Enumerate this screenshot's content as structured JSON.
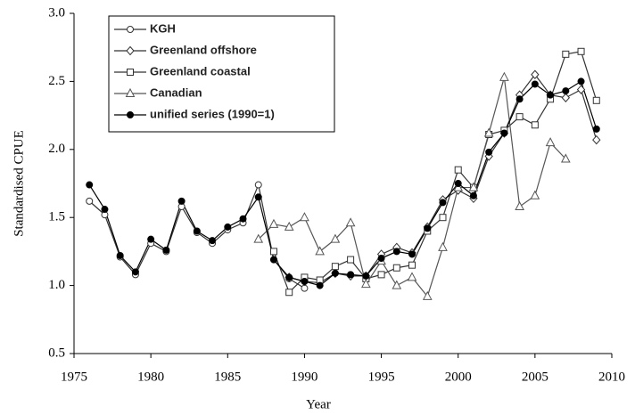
{
  "chart_data": {
    "type": "line",
    "xlabel": "Year",
    "ylabel": "Standardised CPUE",
    "x": [
      1976,
      1977,
      1978,
      1979,
      1980,
      1981,
      1982,
      1983,
      1984,
      1985,
      1986,
      1987,
      1988,
      1989,
      1990,
      1991,
      1992,
      1993,
      1994,
      1995,
      1996,
      1997,
      1998,
      1999,
      2000,
      2001,
      2002,
      2003,
      2004,
      2005,
      2006,
      2007,
      2008,
      2009
    ],
    "series": [
      {
        "name": "KGH",
        "color": "#333333",
        "marker": "circle-open",
        "values": [
          1.62,
          1.52,
          1.21,
          1.08,
          1.31,
          1.25,
          1.58,
          1.39,
          1.31,
          1.41,
          1.46,
          1.74,
          1.19,
          1.05,
          0.98,
          null,
          null,
          null,
          null,
          null,
          null,
          null,
          null,
          null,
          null,
          null,
          null,
          null,
          null,
          null,
          null,
          null,
          null,
          null
        ]
      },
      {
        "name": "Greenland offshore",
        "color": "#333333",
        "marker": "diamond-open",
        "values": [
          null,
          null,
          null,
          null,
          null,
          null,
          null,
          null,
          null,
          null,
          null,
          null,
          null,
          1.06,
          1.03,
          1.02,
          1.09,
          1.07,
          1.07,
          1.23,
          1.28,
          1.24,
          1.43,
          1.63,
          1.7,
          1.64,
          1.95,
          2.12,
          2.4,
          2.55,
          2.4,
          2.38,
          2.44,
          2.07
        ]
      },
      {
        "name": "Greenland coastal",
        "color": "#333333",
        "marker": "square-open",
        "values": [
          null,
          null,
          null,
          null,
          null,
          null,
          null,
          null,
          null,
          null,
          null,
          null,
          1.25,
          0.95,
          1.06,
          1.04,
          1.14,
          1.19,
          1.05,
          1.08,
          1.13,
          1.15,
          1.4,
          1.5,
          1.85,
          1.72,
          2.11,
          2.14,
          2.24,
          2.18,
          2.37,
          2.7,
          2.72,
          2.36
        ]
      },
      {
        "name": "Canadian",
        "color": "#555555",
        "marker": "triangle-open",
        "values": [
          null,
          null,
          null,
          null,
          null,
          null,
          null,
          null,
          null,
          null,
          null,
          1.34,
          1.45,
          1.43,
          1.5,
          1.25,
          1.34,
          1.46,
          1.01,
          1.18,
          1.0,
          1.06,
          0.92,
          1.28,
          1.72,
          1.72,
          2.12,
          2.53,
          1.58,
          1.66,
          2.05,
          1.93,
          null,
          null
        ]
      },
      {
        "name": "unified series (1990=1)",
        "color": "#000000",
        "marker": "circle-filled",
        "values": [
          1.74,
          1.56,
          1.22,
          1.1,
          1.34,
          1.26,
          1.62,
          1.4,
          1.33,
          1.43,
          1.49,
          1.65,
          1.19,
          1.06,
          1.03,
          1.0,
          1.09,
          1.08,
          1.07,
          1.2,
          1.25,
          1.23,
          1.42,
          1.61,
          1.75,
          1.66,
          1.98,
          2.12,
          2.37,
          2.48,
          2.4,
          2.43,
          2.5,
          2.15
        ]
      }
    ],
    "xlim": [
      1975,
      2010
    ],
    "xticks": [
      1975,
      1980,
      1985,
      1990,
      1995,
      2000,
      2005,
      2010
    ],
    "ylim": [
      0.5,
      3.0
    ],
    "yticks": [
      0.5,
      {
        "value": 1,
        "label": "1.0"
      },
      1.5,
      {
        "value": 2,
        "label": "2.0"
      },
      2.5,
      {
        "value": 3,
        "label": "3.0"
      }
    ],
    "legend": "upper left",
    "grid": false
  }
}
